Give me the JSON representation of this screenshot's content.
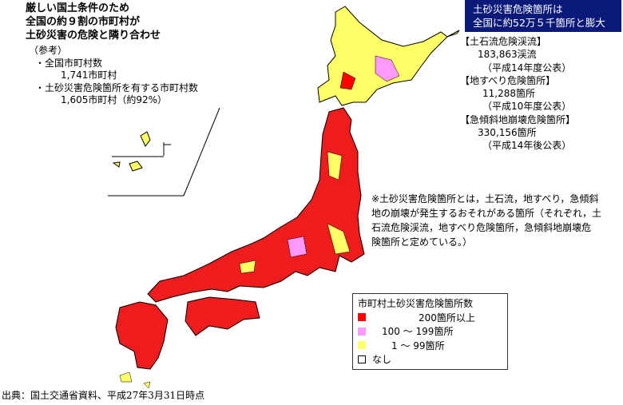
{
  "headline": [
    "厳しい国土条件のため",
    "全国の約９割の市町村が",
    "土砂災害の危険と隣り合わせ"
  ],
  "reference": {
    "label": "（参考）",
    "items": [
      {
        "title": "・全国市町村数",
        "value": "1,741市町村"
      },
      {
        "title": "・土砂災害危険箇所を有する市町村数",
        "value": "1,605市町村（約92%）"
      }
    ]
  },
  "highlight_box": {
    "lines": [
      "土砂災害危険箇所は",
      "全国に約52万５千箇所と膨大"
    ],
    "background": "#0b1a78"
  },
  "categories": [
    {
      "title": "【土石流危険渓流】",
      "value": "183,863渓流",
      "note": "（平成14年度公表）"
    },
    {
      "title": "【地すべり危険箇所】",
      "value": "11,288箇所",
      "note": "（平成10年度公表）"
    },
    {
      "title": "【急傾斜地崩壊危険箇所】",
      "value": "330,156箇所",
      "note": "（平成14年後公表）"
    }
  ],
  "footnote": [
    "※土砂災害危険箇所とは，土石流，地すべり，急傾斜",
    "地の崩壊が発生するおそれがある箇所（それぞれ，土",
    "石流危険渓流，地すべり危険箇所，急傾斜地崩壊危",
    "険箇所と定めている。）"
  ],
  "legend": {
    "title": "市町村土砂災害危険箇所数",
    "items": [
      {
        "label": "200箇所以上",
        "color": "#ff0000"
      },
      {
        "label": "100 ～ 199箇所",
        "color": "#ff99ff"
      },
      {
        "label": "1 ～ 99箇所",
        "color": "#ffff66"
      },
      {
        "label": "なし",
        "color": "#ffffff"
      }
    ]
  },
  "source": "出典：国土交通省資料、平成27年3月31日時点"
}
